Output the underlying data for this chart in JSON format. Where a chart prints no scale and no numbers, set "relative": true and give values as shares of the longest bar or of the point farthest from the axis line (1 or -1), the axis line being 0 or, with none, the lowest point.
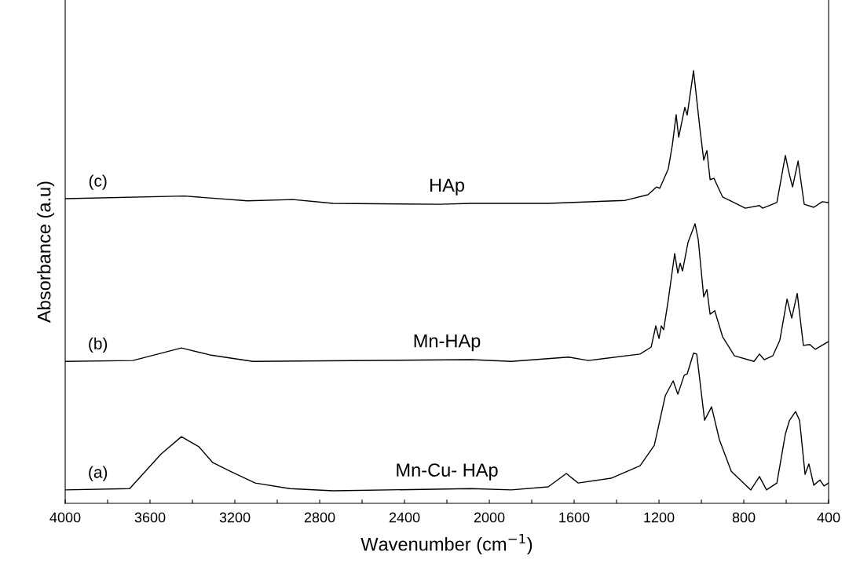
{
  "chart_data": {
    "type": "line",
    "relative": true,
    "xlabel": "Wavenumber (cm$^{−1}$)",
    "ylabel": "Absorbance (a.u)",
    "xlim": [
      4000,
      400
    ],
    "xticks": [
      4000,
      {
        "value": 3800,
        "label": null
      },
      3600,
      {
        "value": 3400,
        "label": null
      },
      3200,
      {
        "value": 3000,
        "label": null
      },
      2800,
      {
        "value": 2600,
        "label": null
      },
      2400,
      {
        "value": 2200,
        "label": null
      },
      2000,
      {
        "value": 1800,
        "label": null
      },
      1600,
      {
        "value": 1400,
        "label": null
      },
      1200,
      {
        "value": 1000,
        "label": null
      },
      800,
      {
        "value": 600,
        "label": null
      },
      400
    ],
    "tick_labels": "x",
    "grid": false,
    "legend": false,
    "marker": "none",
    "line_style": "solid",
    "series": [
      {
        "name": "Mn-Cu- HAp",
        "color": "#000000",
        "x": [
          4000,
          3696,
          3548,
          3452,
          3370,
          3304,
          3222,
          3104,
          2941,
          2737,
          2085,
          1896,
          1722,
          1637,
          1581,
          1426,
          1289,
          1222,
          1170,
          1133,
          1111,
          1081,
          1067,
          1037,
          1022,
          985,
          952,
          915,
          859,
          767,
          726,
          693,
          644,
          604,
          585,
          556,
          537,
          511,
          493,
          470,
          441,
          422,
          400
        ],
        "values": [
          0.031,
          0.034,
          0.114,
          0.154,
          0.131,
          0.094,
          0.074,
          0.047,
          0.034,
          0.029,
          0.034,
          0.031,
          0.038,
          0.069,
          0.047,
          0.058,
          0.087,
          0.134,
          0.249,
          0.283,
          0.252,
          0.296,
          0.299,
          0.347,
          0.345,
          0.192,
          0.223,
          0.147,
          0.074,
          0.031,
          0.062,
          0.031,
          0.047,
          0.16,
          0.191,
          0.212,
          0.192,
          0.067,
          0.091,
          0.042,
          0.054,
          0.04,
          0.047
        ]
      },
      {
        "name": "Mn-HAp",
        "color": "#000000",
        "x": [
          4000,
          3681,
          3452,
          3319,
          3115,
          2085,
          1896,
          1626,
          1533,
          1289,
          1237,
          1215,
          1200,
          1189,
          1178,
          1156,
          1126,
          1111,
          1100,
          1089,
          1063,
          1030,
          1015,
          989,
          974,
          959,
          937,
          900,
          844,
          752,
          726,
          704,
          663,
          630,
          596,
          574,
          548,
          519,
          489,
          463,
          400
        ],
        "values": [
          0.328,
          0.33,
          0.359,
          0.343,
          0.328,
          0.332,
          0.328,
          0.338,
          0.33,
          0.345,
          0.361,
          0.41,
          0.381,
          0.41,
          0.401,
          0.47,
          0.577,
          0.532,
          0.555,
          0.537,
          0.603,
          0.646,
          0.61,
          0.477,
          0.494,
          0.437,
          0.445,
          0.385,
          0.341,
          0.328,
          0.345,
          0.332,
          0.341,
          0.377,
          0.472,
          0.428,
          0.485,
          0.365,
          0.367,
          0.356,
          0.374
        ]
      },
      {
        "name": "HAp",
        "color": "#000000",
        "x": [
          4000,
          3437,
          3141,
          2926,
          2737,
          2233,
          2085,
          1722,
          1359,
          1252,
          1211,
          1196,
          1156,
          1137,
          1119,
          1107,
          1078,
          1067,
          1037,
          1007,
          989,
          974,
          959,
          941,
          900,
          793,
          726,
          711,
          644,
          604,
          589,
          570,
          544,
          515,
          470,
          430,
          400
        ],
        "values": [
          0.704,
          0.71,
          0.699,
          0.702,
          0.693,
          0.691,
          0.693,
          0.693,
          0.7,
          0.713,
          0.731,
          0.728,
          0.773,
          0.828,
          0.898,
          0.846,
          0.915,
          0.897,
          1.0,
          0.866,
          0.793,
          0.815,
          0.748,
          0.751,
          0.708,
          0.682,
          0.688,
          0.682,
          0.695,
          0.804,
          0.768,
          0.731,
          0.791,
          0.691,
          0.684,
          0.697,
          0.695
        ]
      }
    ],
    "annotations": [
      "(a)",
      "(b)",
      "(c)"
    ]
  }
}
